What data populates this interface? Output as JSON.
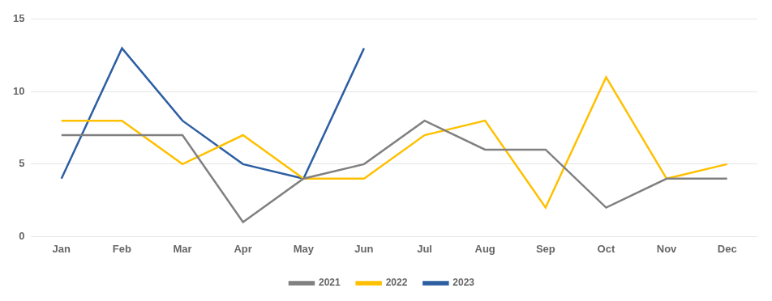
{
  "chart_data": {
    "type": "line",
    "categories": [
      "Jan",
      "Feb",
      "Mar",
      "Apr",
      "May",
      "Jun",
      "Jul",
      "Aug",
      "Sep",
      "Oct",
      "Nov",
      "Dec"
    ],
    "series": [
      {
        "name": "2021",
        "color": "#808080",
        "values": [
          7,
          7,
          7,
          1,
          4,
          5,
          8,
          6,
          6,
          2,
          4,
          4
        ]
      },
      {
        "name": "2022",
        "color": "#FFC000",
        "values": [
          8,
          8,
          5,
          7,
          4,
          4,
          7,
          8,
          2,
          11,
          4,
          5
        ]
      },
      {
        "name": "2023",
        "color": "#2E5FA3",
        "values": [
          4,
          13,
          8,
          5,
          4,
          13,
          null,
          null,
          null,
          null,
          null,
          null
        ]
      }
    ],
    "ylim": [
      0,
      15
    ],
    "yticks": [
      0,
      5,
      10,
      15
    ],
    "grid": true,
    "legend": "bottom"
  }
}
